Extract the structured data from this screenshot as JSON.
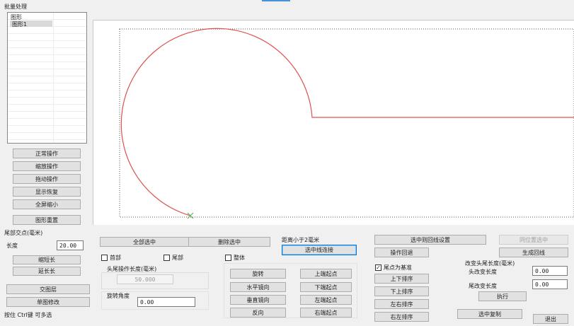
{
  "window": {
    "title": "批量处理"
  },
  "tree": {
    "items": [
      "图形",
      "图形1"
    ]
  },
  "left_buttons": [
    "正常操作",
    "缩放操作",
    "拖动操作",
    "显示恢复",
    "全屏缩小",
    "图形重置"
  ],
  "tail_intersection": {
    "section_label": "尾部交点(毫米)",
    "length_label": "长度",
    "length_value": "20.00",
    "shorten_label": "缩短长",
    "lengthen_label": "延长长"
  },
  "left_bottom": {
    "cross_label": "交图层",
    "single_edit_label": "单图修改",
    "hint": "按住 Ctrl键 可多选"
  },
  "middle": {
    "select_all": "全部选中",
    "delete_selected": "删除选中",
    "head_check": "首部",
    "tail_check": "尾部",
    "whole_check": "整体",
    "head_tail_length_label": "头尾操作长度(毫米)",
    "head_tail_length_value": "50.000",
    "rotate_angle_label": "旋转角度",
    "rotate_angle_value": "0.00",
    "rotate": "旋转",
    "flip_h": "水平镜向",
    "flip_v": "垂直镜向",
    "reverse": "反向",
    "up_end_start": "上端起点",
    "down_end_start": "下端起点",
    "left_end_start": "左端起点",
    "right_end_start": "右端起点",
    "distance_label": "距离小于2毫米",
    "connect_selected": "选中线连接"
  },
  "right": {
    "rollback_setting": "选中则回线设置",
    "operation_rollback": "操作回退",
    "same_pos_select": "同位置选中",
    "generate_return": "生成回线",
    "tail_as_base": "尾点为基准",
    "sort_up_down": "上下排序",
    "sort_down_up": "下上排序",
    "sort_left_right": "左右排序",
    "sort_right_left": "右左排序",
    "change_length_title": "改变头尾长度(毫米)",
    "head_change_label": "头改变长度",
    "head_change_value": "0.00",
    "tail_change_label": "尾改变长度",
    "tail_change_value": "0.00",
    "execute": "执行",
    "copy_selected": "选中复制",
    "exit": "退出"
  },
  "colors": {
    "shape_stroke": "#e05050",
    "dotted_border": "#555555",
    "start_marker": "#5cb85c"
  }
}
